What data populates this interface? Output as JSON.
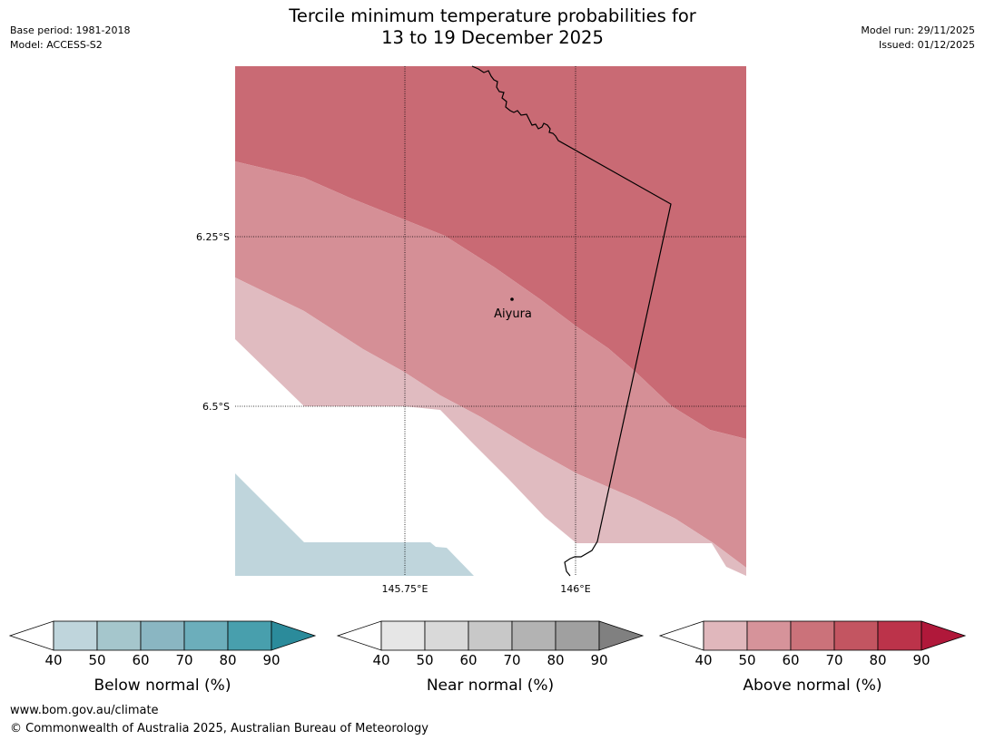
{
  "title_line1": "Tercile minimum temperature probabilities for",
  "title_line2": "13 to 19 December 2025",
  "base_period": "Base period: 1981-2018",
  "model": "Model: ACCESS-S2",
  "model_run": "Model run: 29/11/2025",
  "issued": "Issued: 01/12/2025",
  "map": {
    "lat_labels": [
      "6.25°S",
      "6.5°S"
    ],
    "lon_labels": [
      "145.75°E",
      "146°E"
    ],
    "place_label": "Aiyura",
    "colors": {
      "above_40_50": "#e0bbc0",
      "above_50_60": "#d58f96",
      "above_60_70": "#c96a74",
      "below_40_50": "#bfd5dc",
      "border": "#000000"
    }
  },
  "legends": [
    {
      "title": "Below normal (%)",
      "ticks": [
        "40",
        "50",
        "60",
        "70",
        "80",
        "90"
      ],
      "colors": [
        "#ffffff",
        "#bfd5dc",
        "#a5c6cc",
        "#8ab6c2",
        "#6caebb",
        "#489fad",
        "#2b8b9b"
      ]
    },
    {
      "title": "Near normal (%)",
      "ticks": [
        "40",
        "50",
        "60",
        "70",
        "80",
        "90"
      ],
      "colors": [
        "#ffffff",
        "#e6e6e6",
        "#d9d9d9",
        "#c8c8c8",
        "#b3b3b3",
        "#a0a0a0",
        "#808080"
      ]
    },
    {
      "title": "Above normal (%)",
      "ticks": [
        "40",
        "50",
        "60",
        "70",
        "80",
        "90"
      ],
      "colors": [
        "#ffffff",
        "#e0b7bc",
        "#d6939a",
        "#cb727a",
        "#c35561",
        "#bc334a",
        "#b0183a"
      ]
    }
  ],
  "footer_line1": "www.bom.gov.au/climate",
  "footer_line2": "© Commonwealth of Australia 2025, Australian Bureau of Meteorology"
}
